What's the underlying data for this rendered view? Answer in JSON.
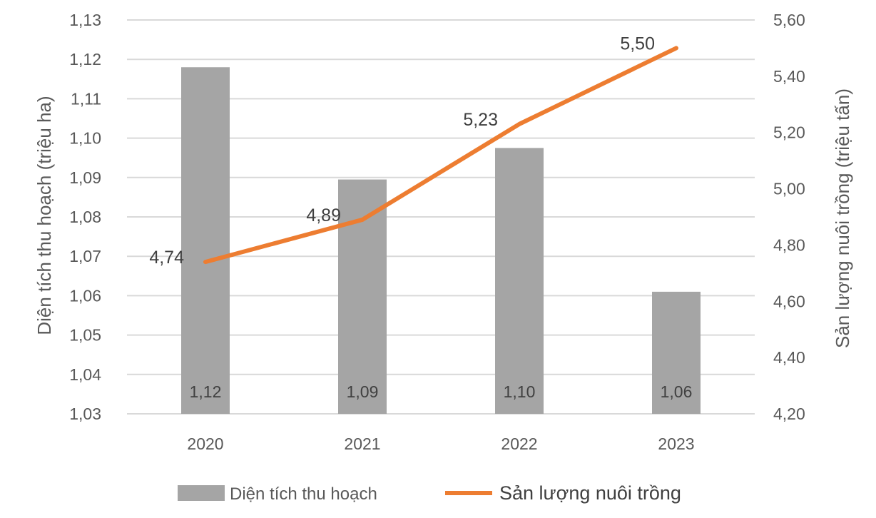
{
  "colors": {
    "bar": "#a5a5a5",
    "line": "#ed7d31",
    "grid": "#d9d9d9",
    "text": "#595959"
  },
  "chart_data": {
    "type": "bar",
    "categories": [
      "2020",
      "2021",
      "2022",
      "2023"
    ],
    "series": [
      {
        "name": "Diện tích thu hoạch",
        "type": "bar",
        "axis": "left",
        "values": [
          1.118,
          1.0895,
          1.0975,
          1.061
        ],
        "labels": [
          "1,12",
          "1,09",
          "1,10",
          "1,06"
        ]
      },
      {
        "name": "Sản lượng nuôi trồng",
        "type": "line",
        "axis": "right",
        "values": [
          4.74,
          4.89,
          5.23,
          5.5
        ],
        "labels": [
          "4,74",
          "4,89",
          "5,23",
          "5,50"
        ]
      }
    ],
    "y_left": {
      "label": "Diện tích thu hoạch (triệu ha)",
      "ylim": [
        1.03,
        1.13
      ],
      "ticks": [
        "1,03",
        "1,04",
        "1,05",
        "1,06",
        "1,07",
        "1,08",
        "1,09",
        "1,10",
        "1,11",
        "1,12",
        "1,13"
      ]
    },
    "y_right": {
      "label": "Sản lượng nuôi trồng (triệu tấn)",
      "ylim": [
        4.2,
        5.6
      ],
      "ticks": [
        "4,20",
        "4,40",
        "4,60",
        "4,80",
        "5,00",
        "5,20",
        "5,40",
        "5,60"
      ]
    },
    "grid": true,
    "legend_position": "bottom"
  }
}
